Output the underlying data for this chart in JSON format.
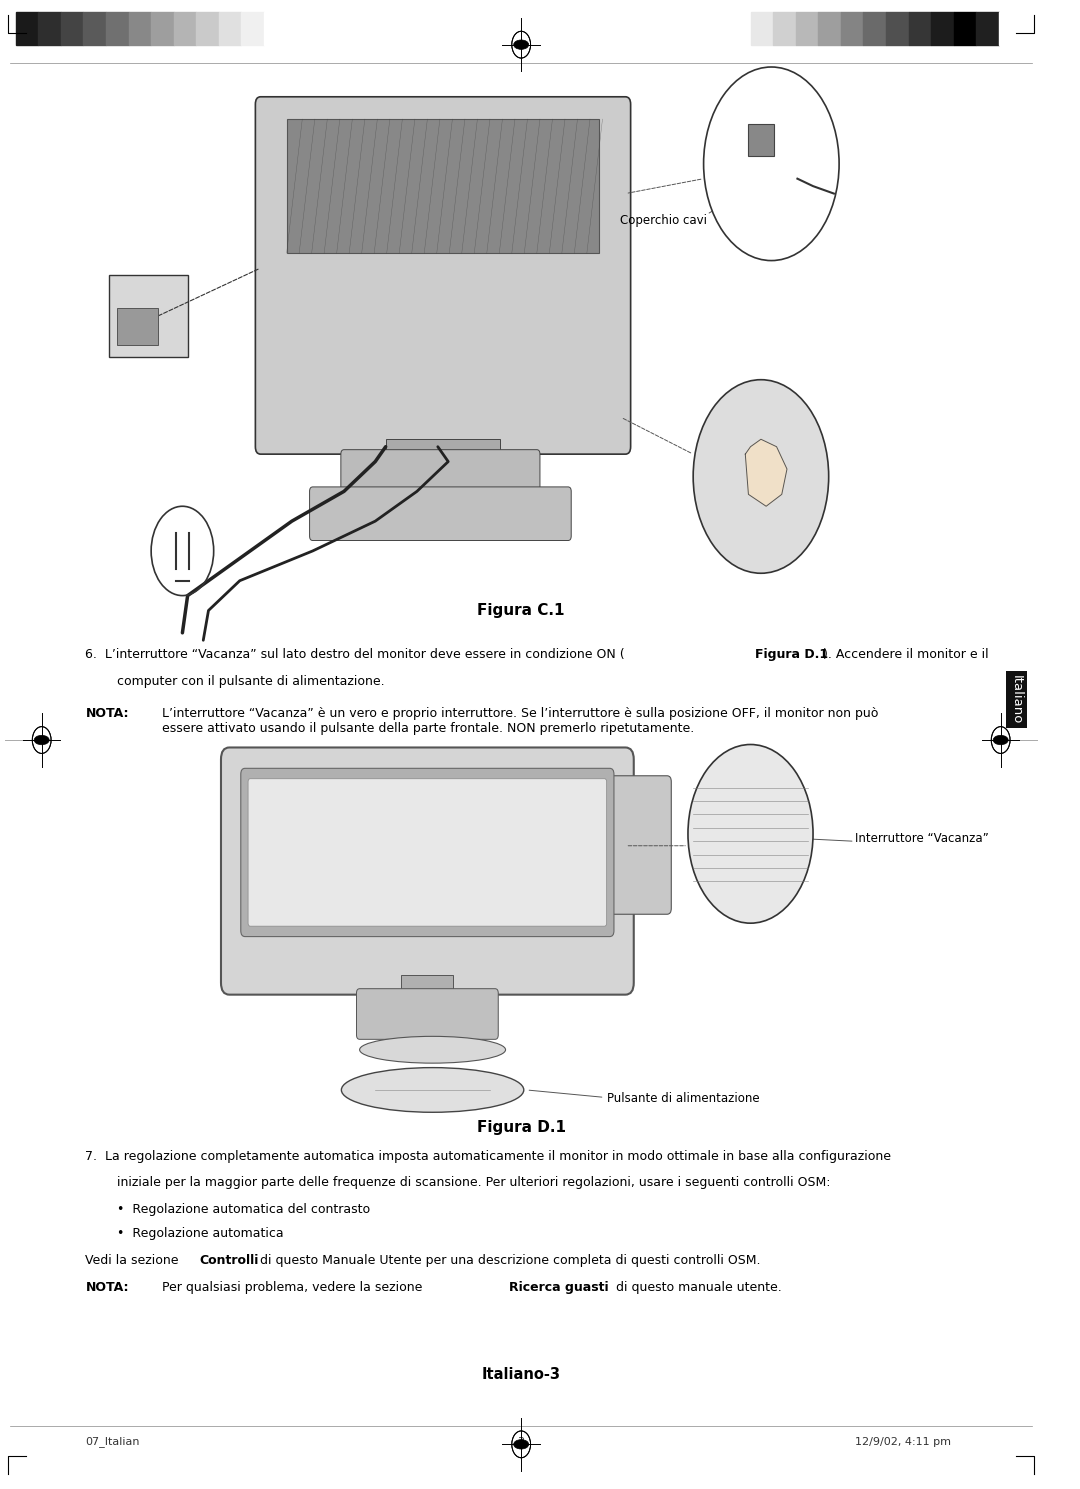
{
  "page_width": 10.8,
  "page_height": 14.89,
  "background_color": "#ffffff",
  "top_bar_colors_left": [
    "#1a1a1a",
    "#2e2e2e",
    "#444444",
    "#5a5a5a",
    "#707070",
    "#888888",
    "#9e9e9e",
    "#b4b4b4",
    "#cacaca",
    "#e0e0e0",
    "#f0f0f0",
    "#ffffff"
  ],
  "top_bar_colors_right": [
    "#e8e8e8",
    "#d0d0d0",
    "#b8b8b8",
    "#9e9e9e",
    "#848484",
    "#6a6a6a",
    "#505050",
    "#363636",
    "#1c1c1c",
    "#000000",
    "#202020",
    "#ffffff"
  ],
  "figura_c1_label": "Figura C.1",
  "figura_d1_label": "Figura D.1",
  "italiano_label": "Italiano",
  "italiano_3_label": "Italiano-3",
  "footer_left": "07_Italian",
  "footer_center": "3",
  "footer_right": "12/9/02, 4:11 pm",
  "coperchio_cavi_text": "Coperchio cavi",
  "interruttore_text": "Interruttore “Vacanza”",
  "pulsante_text": "Pulsante di alimentazione"
}
